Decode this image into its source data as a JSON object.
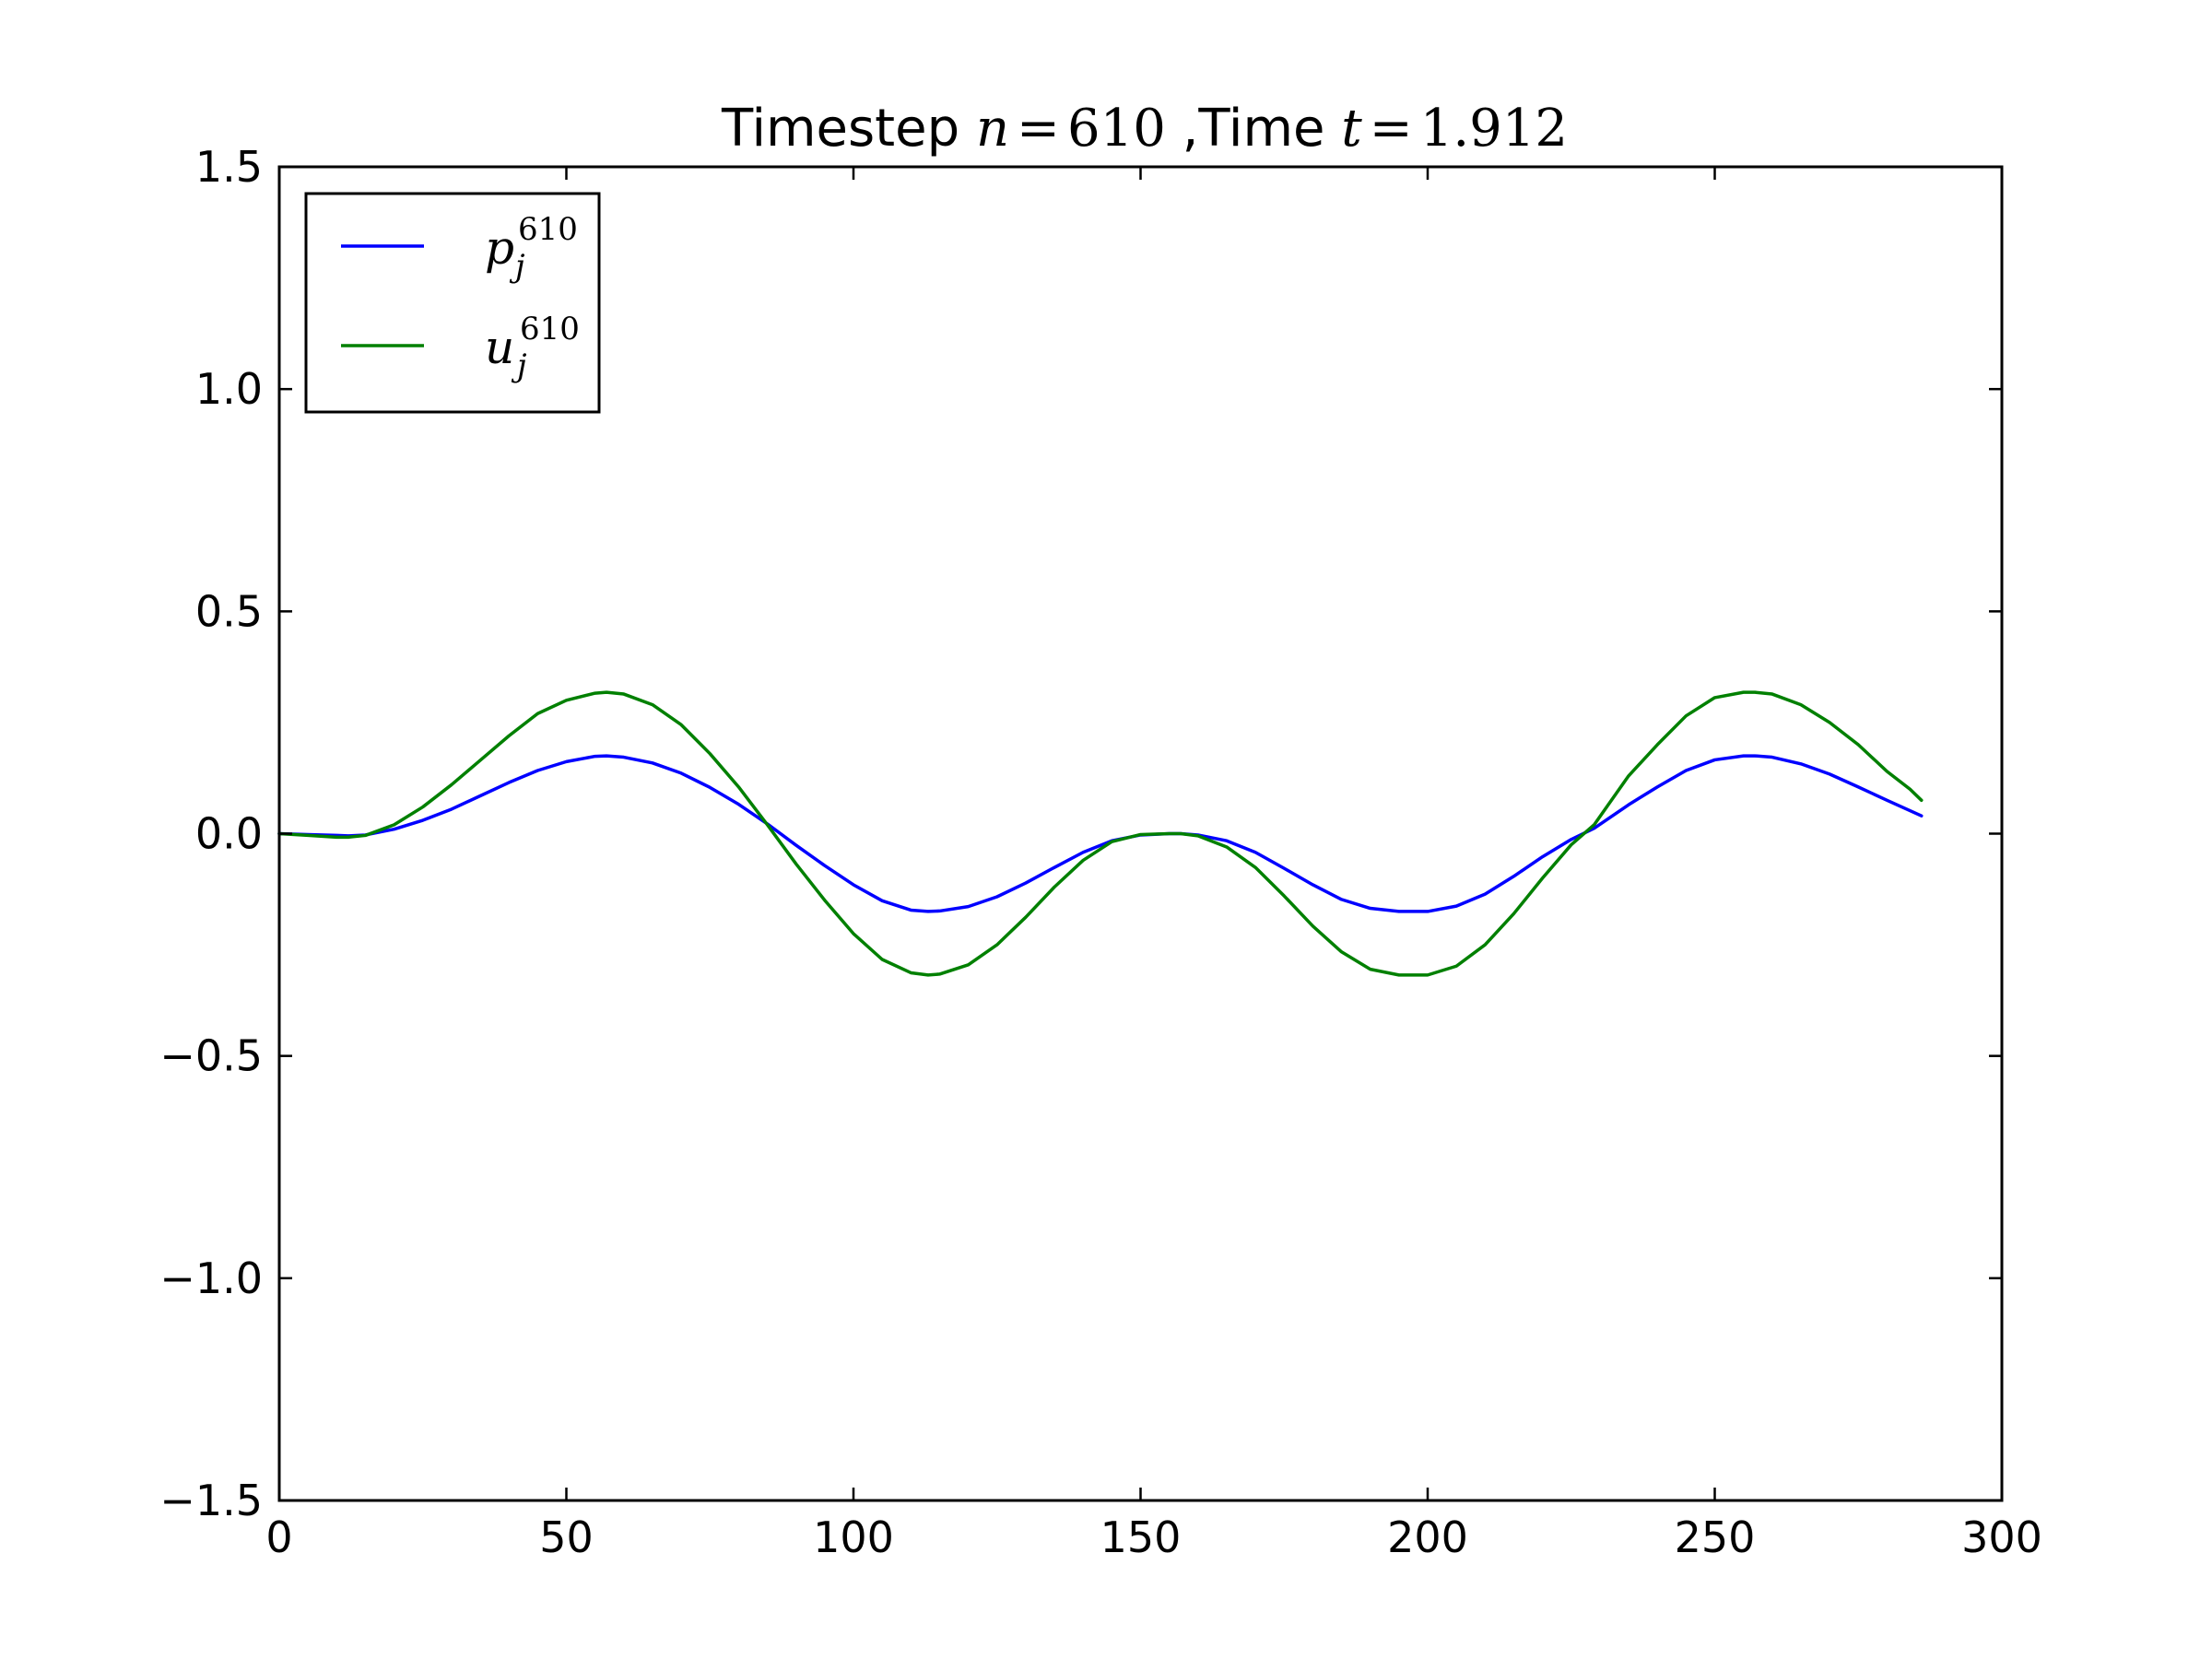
{
  "chart_data": {
    "type": "line",
    "title": {
      "prefix": "Timestep ",
      "n_label": "n",
      "n_eq": "=",
      "n_value": "610",
      "mid": " ,Time ",
      "t_label": "t",
      "t_eq": "=",
      "t_value": "1.912"
    },
    "xlim": [
      0,
      300
    ],
    "ylim": [
      -1.5,
      1.5
    ],
    "x_ticks": [
      0,
      50,
      100,
      150,
      200,
      250,
      300
    ],
    "y_ticks": [
      -1.5,
      -1.0,
      -0.5,
      0.0,
      0.5,
      1.0,
      1.5
    ],
    "x_tick_labels": [
      "0",
      "50",
      "100",
      "150",
      "200",
      "250",
      "300"
    ],
    "y_tick_labels": [
      "−1.5",
      "−1.0",
      "−0.5",
      "0.0",
      "0.5",
      "1.0",
      "1.5"
    ],
    "xlabel": "",
    "ylabel": "",
    "grid": false,
    "legend_position": "top-left",
    "series": [
      {
        "name": "p_j^610",
        "legend_main": "p",
        "legend_sub": "j",
        "legend_sup": "610",
        "color": "#0000ff",
        "x": [
          0,
          5,
          10,
          12,
          15,
          20,
          25,
          30,
          35,
          40,
          45,
          50,
          55,
          57,
          60,
          65,
          70,
          75,
          80,
          85,
          90,
          95,
          100,
          105,
          110,
          113,
          115,
          120,
          125,
          130,
          135,
          140,
          145,
          150,
          155,
          157,
          160,
          165,
          170,
          175,
          180,
          185,
          190,
          195,
          200,
          205,
          210,
          215,
          220,
          225,
          229,
          235,
          240,
          245,
          250,
          255,
          257,
          260,
          265,
          270,
          275,
          280,
          286
        ],
        "y": [
          0.0,
          -0.002,
          -0.004,
          -0.005,
          -0.003,
          0.01,
          0.03,
          0.055,
          0.085,
          0.115,
          0.142,
          0.162,
          0.174,
          0.175,
          0.172,
          0.159,
          0.136,
          0.104,
          0.066,
          0.022,
          -0.026,
          -0.072,
          -0.115,
          -0.151,
          -0.172,
          -0.175,
          -0.174,
          -0.164,
          -0.142,
          -0.111,
          -0.076,
          -0.042,
          -0.016,
          -0.003,
          0.0,
          0.0,
          -0.003,
          -0.016,
          -0.042,
          -0.078,
          -0.115,
          -0.148,
          -0.168,
          -0.175,
          -0.175,
          -0.163,
          -0.136,
          -0.096,
          -0.052,
          -0.013,
          0.012,
          0.065,
          0.105,
          0.142,
          0.166,
          0.175,
          0.175,
          0.172,
          0.157,
          0.134,
          0.105,
          0.075,
          0.04
        ]
      },
      {
        "name": "u_j^610",
        "legend_main": "u",
        "legend_sub": "j",
        "legend_sup": "610",
        "color": "#008000",
        "x": [
          0,
          5,
          10,
          12,
          15,
          20,
          25,
          30,
          35,
          40,
          45,
          50,
          55,
          57,
          60,
          65,
          70,
          75,
          80,
          85,
          90,
          95,
          100,
          105,
          110,
          113,
          115,
          120,
          125,
          130,
          135,
          140,
          145,
          150,
          155,
          157,
          160,
          165,
          170,
          175,
          180,
          185,
          190,
          195,
          200,
          205,
          210,
          215,
          220,
          225,
          229,
          235,
          240,
          245,
          250,
          255,
          257,
          260,
          265,
          270,
          275,
          280,
          284,
          286
        ],
        "y": [
          0.0,
          -0.004,
          -0.008,
          -0.008,
          -0.004,
          0.02,
          0.06,
          0.11,
          0.165,
          0.22,
          0.27,
          0.3,
          0.316,
          0.318,
          0.314,
          0.29,
          0.245,
          0.18,
          0.105,
          0.02,
          -0.068,
          -0.15,
          -0.225,
          -0.283,
          -0.313,
          -0.318,
          -0.316,
          -0.295,
          -0.25,
          -0.188,
          -0.12,
          -0.06,
          -0.018,
          -0.002,
          0.0,
          0.0,
          -0.005,
          -0.03,
          -0.076,
          -0.14,
          -0.208,
          -0.266,
          -0.305,
          -0.318,
          -0.318,
          -0.298,
          -0.25,
          -0.18,
          -0.1,
          -0.025,
          0.02,
          0.13,
          0.2,
          0.265,
          0.306,
          0.318,
          0.318,
          0.314,
          0.29,
          0.25,
          0.2,
          0.14,
          0.1,
          0.075
        ]
      }
    ]
  }
}
